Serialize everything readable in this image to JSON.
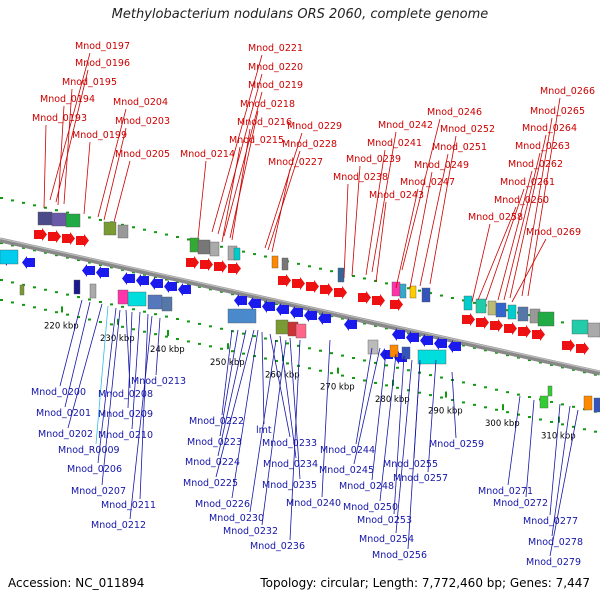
{
  "title": "Methylobacterium nodulans ORS 2060, complete genome",
  "accession": "Accession: NC_011894",
  "summary": "Topology: circular; Length: 7,772,460 bp; Genes: 7,447",
  "colors": {
    "top_labels": "#cc0000",
    "bottom_labels": "#1515a8",
    "highlight_label": "#33bbee",
    "forward_genes": "#ee1111",
    "reverse_genes": "#1a1aee",
    "backbone": "#888888",
    "dots": "#119911"
  },
  "top_labels": [
    "Mnod_0197",
    "Mnod_0196",
    "Mnod_0195",
    "Mnod_0194",
    "Mnod_0193",
    "Mnod_0199",
    "Mnod_0204",
    "Mnod_0203",
    "Mnod_0205",
    "Mnod_0221",
    "Mnod_0220",
    "Mnod_0219",
    "Mnod_0218",
    "Mnod_0216",
    "Mnod_0215",
    "Mnod_0214",
    "Mnod_0229",
    "Mnod_0228",
    "Mnod_0227",
    "Mnod_0246",
    "Mnod_0242",
    "Mnod_0241",
    "Mnod_0239",
    "Mnod_0238",
    "Mnod_0252",
    "Mnod_0251",
    "Mnod_0249",
    "Mnod_0247",
    "Mnod_0243",
    "Mnod_0266",
    "Mnod_0265",
    "Mnod_0264",
    "Mnod_0263",
    "Mnod_0262",
    "Mnod_0261",
    "Mnod_0260",
    "Mnod_0258",
    "Mnod_0269"
  ],
  "bottom_labels": [
    "Mnod_0200",
    "Mnod_0201",
    "Mnod_0202",
    "Mnod_R0009",
    "Mnod_0206",
    "Mnod_0207",
    "Mnod_0208",
    "Mnod_0209",
    "Mnod_0210",
    "Mnod_0211",
    "Mnod_0212",
    "Mnod_0213",
    "Mnod_0222",
    "Mnod_0223",
    "Mnod_0224",
    "Mnod_0225",
    "Mnod_0226",
    "lmt",
    "Mnod_0233",
    "Mnod_0234",
    "Mnod_0235",
    "Mnod_0230",
    "Mnod_0232",
    "Mnod_0236",
    "Mnod_0240",
    "Mnod_0244",
    "Mnod_0245",
    "Mnod_0248",
    "Mnod_0250",
    "Mnod_0253",
    "Mnod_0254",
    "Mnod_0256",
    "Mnod_0255",
    "Mnod_0257",
    "Mnod_0259",
    "Mnod_0271",
    "Mnod_0272",
    "Mnod_0277",
    "Mnod_0278",
    "Mnod_0279"
  ],
  "ticks": [
    "220 kbp",
    "230 kbp",
    "240 kbp",
    "250 kbp",
    "260 kbp",
    "270 kbp",
    "280 kbp",
    "290 kbp",
    "300 kbp",
    "310 kbp"
  ]
}
